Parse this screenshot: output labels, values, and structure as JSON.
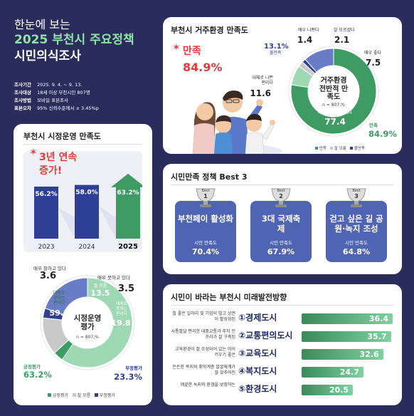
{
  "header": {
    "kicker": "한눈에 보는",
    "title_line1": "2025 부천시 주요정책",
    "title_line2": "시민의식조사",
    "info": [
      {
        "label": "조사기간",
        "value": "2025. 9. 4. ~ 9. 13."
      },
      {
        "label": "조사대상",
        "value": "18세 이상 부천시민 807명"
      },
      {
        "label": "조사방법",
        "value": "모바일 표본조사"
      },
      {
        "label": "표본오차",
        "value": "95% 신뢰수준에서 ± 3.45%p"
      }
    ]
  },
  "colors": {
    "navy_bg": "#2a2d5c",
    "green": "#3d9b63",
    "light_green": "#9fd8b4",
    "navy": "#2f3f96",
    "blue": "#4f64b3",
    "gray": "#c9c9c9"
  },
  "admin": {
    "title": "부천시 시정운영 만족도",
    "banner": "3년 연속 증가!",
    "center_title": "시정운영 평가",
    "center_n": "n = 807,%",
    "legend": [
      "긍정평가",
      "잘 모름",
      "부정평가"
    ]
  },
  "living": {
    "title": "부천시 거주환경 만족도",
    "satisfied_label": "만족",
    "satisfied_value": "84.9%",
    "center_title": "거주환경 전반적 만족도",
    "center_n": "n = 807,%",
    "legend": [
      "만족",
      "잘 모름",
      "불만족"
    ]
  },
  "best": {
    "title": "시민만족 정책 Best 3",
    "badge_word": "Best",
    "items": [
      {
        "rank": "1",
        "name": "부천페이 활성화",
        "label": "시민 만족도",
        "value": "70.4%"
      },
      {
        "rank": "2",
        "name": "3대 국제축제",
        "label": "시민 만족도",
        "value": "67.9%"
      },
      {
        "rank": "3",
        "name": "걷고 싶은 길 공원·녹지 조성",
        "label": "시민 만족도",
        "value": "64.8%"
      }
    ]
  },
  "future": {
    "title": "시민이 바라는 부천시 미래발전방향"
  },
  "chart_data": [
    {
      "type": "bar",
      "title": "3년 연속 증가!",
      "categories": [
        "2023",
        "2024",
        "2025"
      ],
      "values": [
        56.2,
        58.0,
        63.2
      ],
      "value_labels": [
        "56.2%",
        "58.0%",
        "63.2%"
      ],
      "ylim": [
        0,
        70
      ]
    },
    {
      "type": "pie",
      "title": "시정운영 평가",
      "series": [
        {
          "name": "대체로 잘하는 편이다",
          "value": 59.6,
          "label": "59.6"
        },
        {
          "name": "매우 잘하고 있다",
          "value": 3.6,
          "label": "3.6"
        },
        {
          "name": "잘 모름",
          "value": 13.5,
          "label": "13.5"
        },
        {
          "name": "매우 못하고 있다",
          "value": 3.5,
          "label": "3.5"
        },
        {
          "name": "대체로 못하는 편이다",
          "value": 19.8,
          "label": "19.8"
        }
      ],
      "groups": [
        {
          "name": "긍정평가",
          "value": "63.2%"
        },
        {
          "name": "부정평가",
          "value": "23.3%"
        }
      ]
    },
    {
      "type": "pie",
      "title": "거주환경 전반적 만족도",
      "series": [
        {
          "name": "대체로 좋은 편이다",
          "value": 77.4,
          "label": "77.4"
        },
        {
          "name": "매우 좋다",
          "value": 7.5,
          "label": "7.5"
        },
        {
          "name": "잘 모르겠다",
          "value": 2.1,
          "label": "2.1"
        },
        {
          "name": "매우 나쁘다",
          "value": 1.4,
          "label": "1.4"
        },
        {
          "name": "대체로 나쁜 편이다",
          "value": 11.6,
          "label": "11.6"
        }
      ],
      "groups": [
        {
          "name": "만족",
          "value": "84.9%"
        },
        {
          "name": "불만족",
          "value": "13.1%"
        }
      ]
    },
    {
      "type": "bar",
      "orientation": "horizontal",
      "title": "시민이 바라는 부천시 미래발전방향",
      "categories": [
        "①경제도시",
        "②교통편의도시",
        "③교육도시",
        "④복지도시",
        "⑤환경도시"
      ],
      "descriptions": [
        "질 좋은 일자리 및 기업이 많고 상권이 활성화된",
        "사통팔달 편리한 대중교통과 주차 인프라가 잘 구축된",
        "교육환경이 잘 조성되어 있는 아이 키우기 좋은",
        "든든한 복지와 취약계층 발굴체계가 잘 갖추어진",
        "깨끗한 녹지와 환경을 보장하는"
      ],
      "values": [
        36.4,
        35.7,
        32.6,
        24.7,
        20.5
      ],
      "xlim": [
        0,
        36.4
      ]
    }
  ]
}
